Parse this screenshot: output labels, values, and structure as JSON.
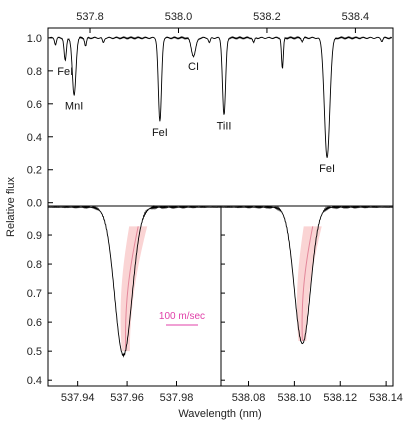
{
  "chart_data": [
    {
      "panel": "top",
      "type": "line",
      "x_unit": "nm",
      "xlim": [
        537.705,
        538.485
      ],
      "ylim": [
        -0.02,
        1.06
      ],
      "x_ticks": [
        537.8,
        538.0,
        538.2,
        538.4
      ],
      "y_ticks": [
        0.0,
        0.2,
        0.4,
        0.6,
        0.8,
        1.0
      ],
      "continuum": 1.0,
      "lines": [
        {
          "label": "FeI",
          "x": 537.744,
          "depth": 0.14,
          "width": 0.0025
        },
        {
          "label": "MnI",
          "x": 537.764,
          "depth": 0.35,
          "width": 0.004
        },
        {
          "label": "FeI",
          "x": 537.958,
          "depth": 0.51,
          "width": 0.0035
        },
        {
          "label": "CI",
          "x": 538.034,
          "depth": 0.11,
          "width": 0.005
        },
        {
          "label": "TiII",
          "x": 538.103,
          "depth": 0.47,
          "width": 0.0035
        },
        {
          "label": "FeI",
          "x": 538.336,
          "depth": 0.73,
          "width": 0.006
        }
      ],
      "weak_lines": [
        {
          "x": 537.722,
          "depth": 0.04,
          "width": 0.002
        },
        {
          "x": 537.79,
          "depth": 0.05,
          "width": 0.002
        },
        {
          "x": 537.83,
          "depth": 0.03,
          "width": 0.002
        },
        {
          "x": 538.07,
          "depth": 0.03,
          "width": 0.002
        },
        {
          "x": 538.17,
          "depth": 0.03,
          "width": 0.002
        },
        {
          "x": 538.235,
          "depth": 0.19,
          "width": 0.002
        },
        {
          "x": 538.28,
          "depth": 0.02,
          "width": 0.002
        },
        {
          "x": 538.46,
          "depth": 0.02,
          "width": 0.002
        }
      ]
    },
    {
      "panel": "bottom-left",
      "type": "line",
      "xlim": [
        537.928,
        537.998
      ],
      "ylim": [
        0.38,
        1.0
      ],
      "x_ticks": [
        537.94,
        537.96,
        537.98
      ],
      "y_ticks": [
        0.4,
        0.5,
        0.6,
        0.7,
        0.8,
        0.9
      ],
      "line_center": 537.9585,
      "line_min": 0.49,
      "line_width": 0.0035,
      "bisector": {
        "x_top": 537.9645,
        "x_bottom": 537.9595,
        "y_top": 0.93,
        "y_bottom": 0.5
      }
    },
    {
      "panel": "bottom-right",
      "type": "line",
      "xlim": [
        538.068,
        538.143
      ],
      "ylim": [
        0.38,
        1.0
      ],
      "x_ticks": [
        538.08,
        538.1,
        538.12,
        538.14
      ],
      "y_ticks": [
        0.4,
        0.5,
        0.6,
        0.7,
        0.8,
        0.9
      ],
      "line_center": 538.1035,
      "line_min": 0.53,
      "line_width": 0.0035,
      "bisector": {
        "x_top": 538.108,
        "x_bottom": 538.1035,
        "y_top": 0.93,
        "y_bottom": 0.535
      }
    }
  ],
  "labels": {
    "ylabel": "Relative flux",
    "xlabel": "Wavelength (nm)",
    "scale_bar": "100 m/sec"
  },
  "colors": {
    "axis": "#000000",
    "spectrum": "#000000",
    "bisector_band": "#f9cccc",
    "bisector_line": "#e3879a",
    "scale_bar": "#e040a8"
  }
}
